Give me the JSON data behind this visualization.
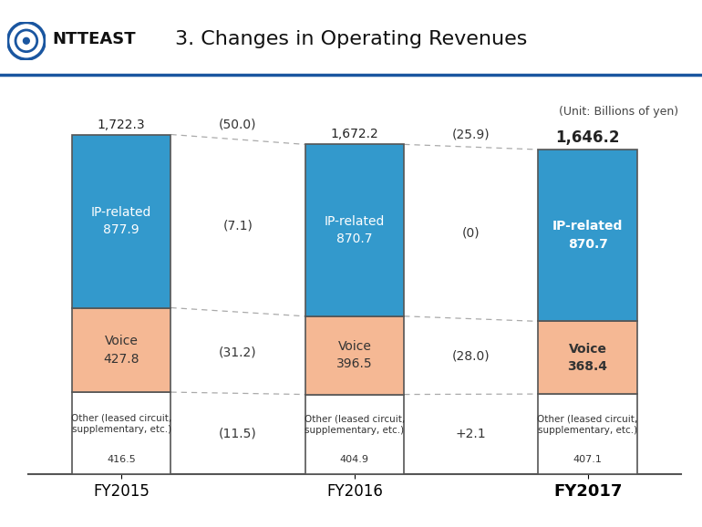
{
  "title": "3. Changes in Operating Revenues",
  "unit_label": "(Unit: Billions of yen)",
  "background_color": "#ffffff",
  "header_color": "#1a56a0",
  "bars": [
    {
      "label": "FY2015",
      "x": 0,
      "other": 416.5,
      "voice": 427.8,
      "ip": 877.9,
      "total": 1722.3,
      "other_label": "Other (leased circuit,\nsupplementary, etc.)",
      "other_value": "416.5",
      "voice_label": "Voice\n427.8",
      "ip_label": "IP-related\n877.9",
      "bold": false
    },
    {
      "label": "FY2016",
      "x": 2,
      "other": 404.9,
      "voice": 396.5,
      "ip": 870.7,
      "total": 1672.2,
      "other_label": "Other (leased circuit,\nsupplementary, etc.)",
      "other_value": "404.9",
      "voice_label": "Voice\n396.5",
      "ip_label": "IP-related\n870.7",
      "bold": false
    },
    {
      "label": "FY2017",
      "x": 4,
      "other": 407.1,
      "voice": 368.4,
      "ip": 870.7,
      "total": 1646.2,
      "other_label": "Other (leased circuit,\nsupplementary, etc.)",
      "other_value": "407.1",
      "voice_label": "Voice\n368.4",
      "ip_label": "IP-related\n870.7",
      "bold": true
    }
  ],
  "changes": [
    {
      "x": 1,
      "total_change": "(50.0)",
      "ip_change": "(7.1)",
      "voice_change": "(31.2)",
      "other_change": "(11.5)"
    },
    {
      "x": 3,
      "total_change": "(25.9)",
      "ip_change": "(0)",
      "voice_change": "(28.0)",
      "other_change": "+2.1"
    }
  ],
  "colors": {
    "ip": "#3399cc",
    "voice": "#f5b894",
    "other": "#ffffff",
    "bar_border": "#555555",
    "dotted_line": "#aaaaaa"
  },
  "bar_width": 0.85,
  "ylim_max": 1950,
  "logo_text": "ⓣ NTTEAST"
}
